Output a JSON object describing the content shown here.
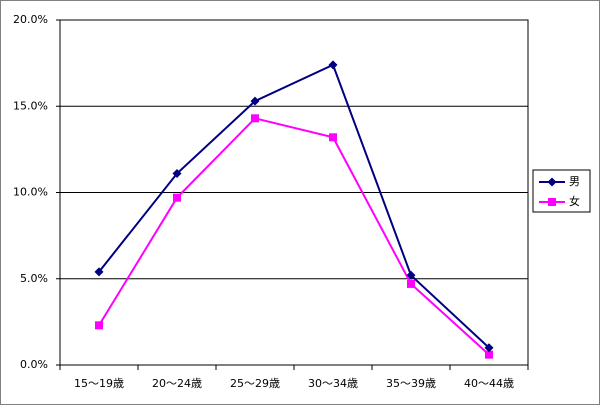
{
  "chart_data": {
    "type": "line",
    "categories": [
      "15〜19歳",
      "20〜24歳",
      "25〜29歳",
      "30〜34歳",
      "35〜39歳",
      "40〜44歳"
    ],
    "series": [
      {
        "name": "男",
        "color": "#000080",
        "marker": "diamond",
        "values": [
          5.4,
          11.1,
          15.3,
          17.4,
          5.2,
          1.0
        ]
      },
      {
        "name": "女",
        "color": "#ff00ff",
        "marker": "square",
        "values": [
          2.3,
          9.7,
          14.3,
          13.2,
          4.7,
          0.6
        ]
      }
    ],
    "ylim": [
      0,
      20
    ],
    "yticks": [
      {
        "value": 0,
        "label": "0.0%"
      },
      {
        "value": 5,
        "label": "5.0%"
      },
      {
        "value": 10,
        "label": "10.0%"
      },
      {
        "value": 15,
        "label": "15.0%"
      },
      {
        "value": 20,
        "label": "20.0%"
      }
    ],
    "grid": true,
    "legend": "right"
  }
}
